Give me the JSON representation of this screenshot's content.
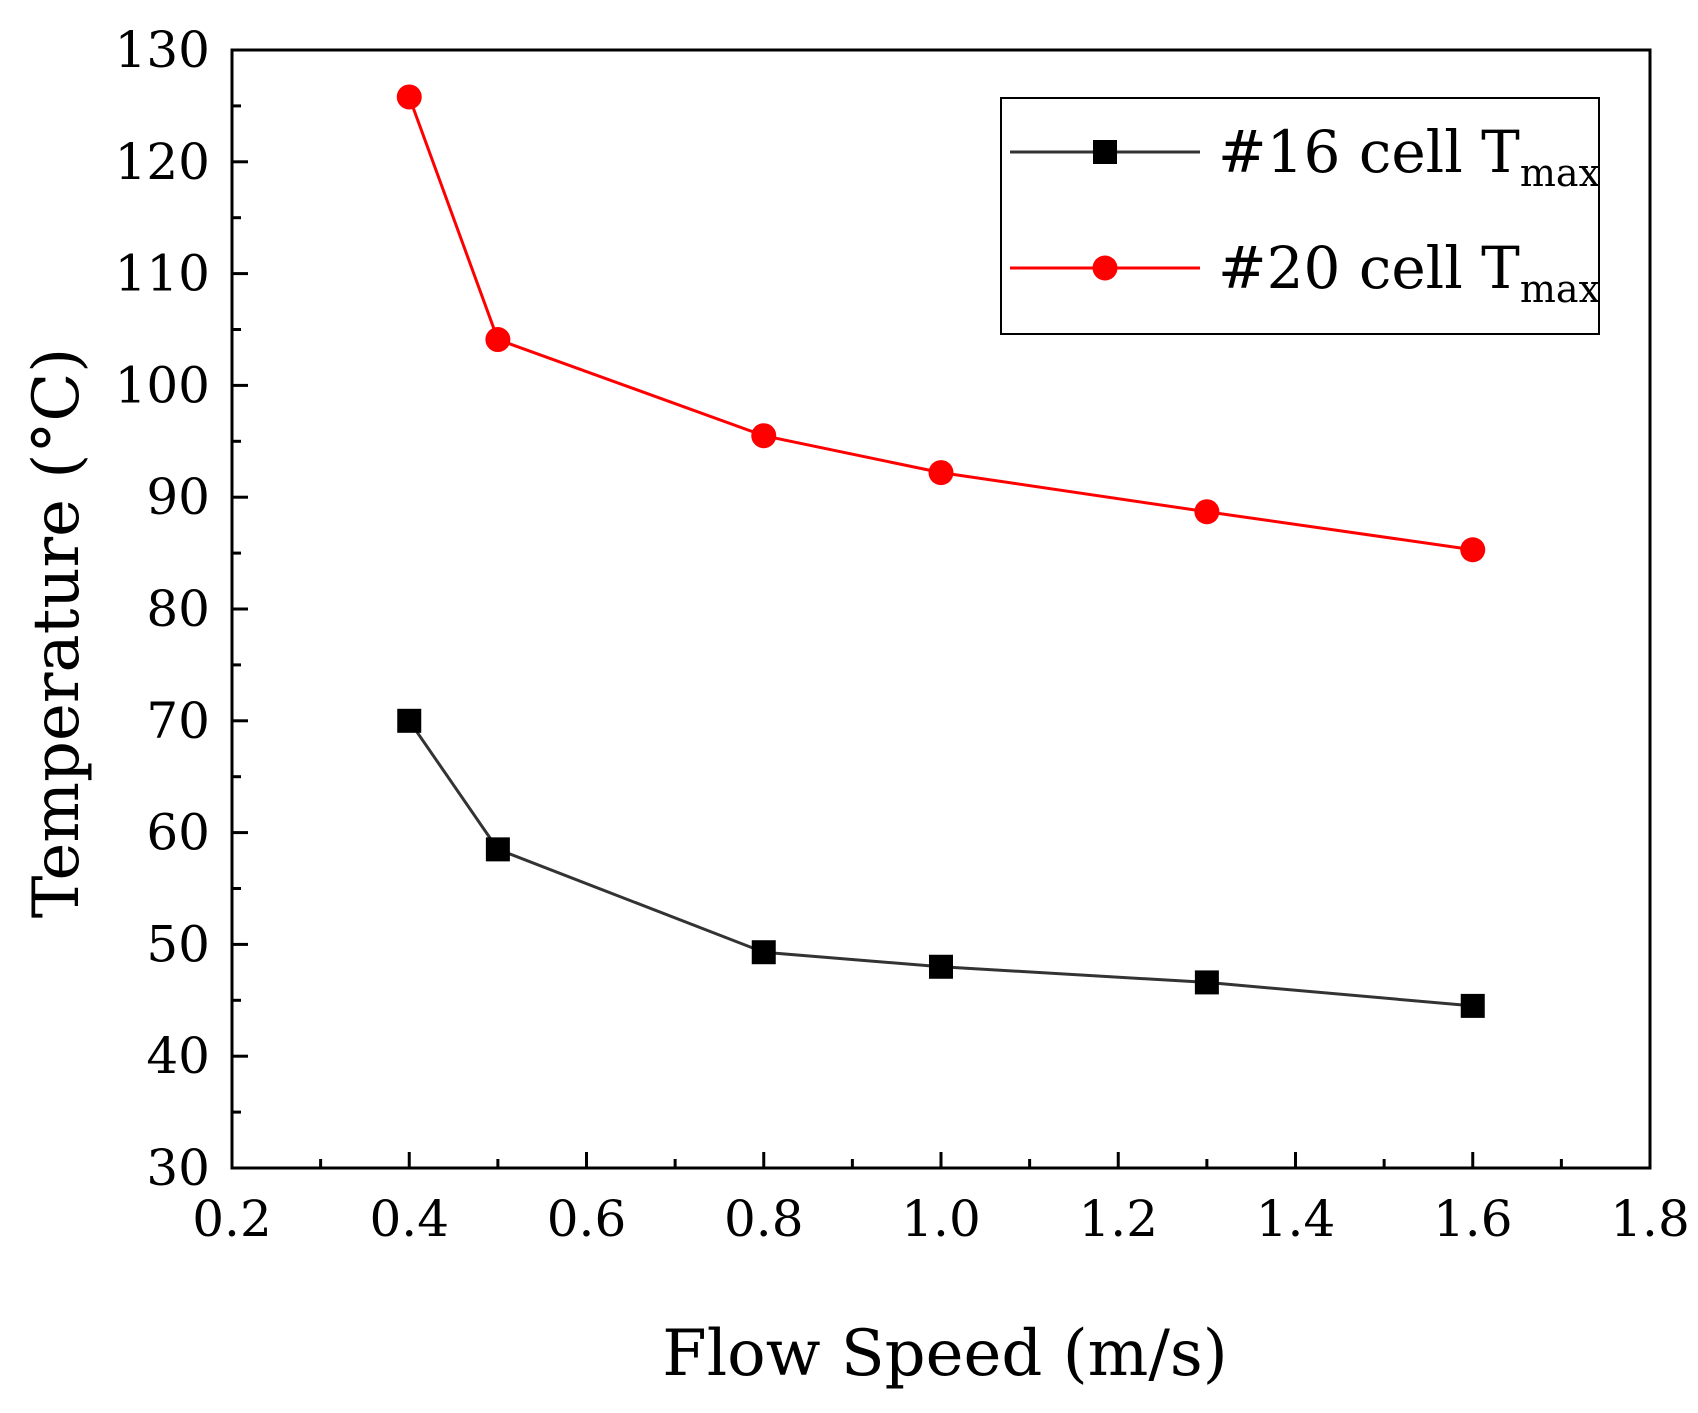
{
  "chart_data": {
    "type": "line",
    "title": "",
    "xlabel": "Flow Speed (m/s)",
    "ylabel": "Temperature (°C)",
    "xlim": [
      0.2,
      1.8
    ],
    "ylim": [
      30,
      130
    ],
    "x_ticks": [
      "0.2",
      "0.4",
      "0.6",
      "0.8",
      "1.0",
      "1.2",
      "1.4",
      "1.6",
      "1.8"
    ],
    "y_ticks": [
      "30",
      "40",
      "50",
      "60",
      "70",
      "80",
      "90",
      "100",
      "110",
      "120",
      "130"
    ],
    "grid": false,
    "legend_position": "top-right",
    "series": [
      {
        "name": "#16 cell T",
        "name_subscript": "max",
        "color": "#000000",
        "line_color": "#333333",
        "marker": "square",
        "x": [
          0.4,
          0.5,
          0.8,
          1.0,
          1.3,
          1.6
        ],
        "values": [
          70.0,
          58.5,
          49.3,
          48.0,
          46.6,
          44.5
        ]
      },
      {
        "name": "#20 cell T",
        "name_subscript": "max",
        "color": "#ff0000",
        "line_color": "#ff0000",
        "marker": "circle",
        "x": [
          0.4,
          0.5,
          0.8,
          1.0,
          1.3,
          1.6
        ],
        "values": [
          125.8,
          104.1,
          95.5,
          92.2,
          88.7,
          85.3
        ]
      }
    ]
  }
}
